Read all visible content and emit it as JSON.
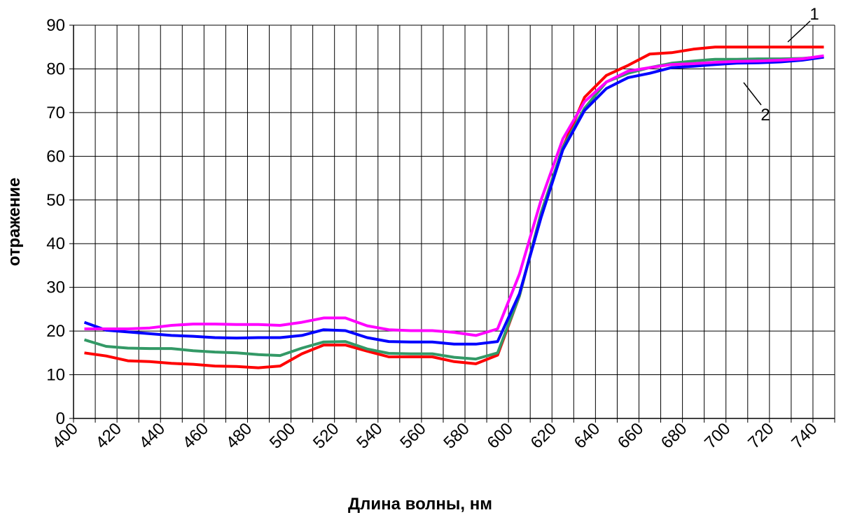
{
  "chart_data": {
    "type": "line",
    "x_label": "Длина волны, нм",
    "y_label": "отражение",
    "categories": [
      "400",
      null,
      "420",
      null,
      "440",
      null,
      "460",
      null,
      "480",
      null,
      "500",
      null,
      "520",
      null,
      "540",
      null,
      "560",
      null,
      "580",
      null,
      "600",
      null,
      "620",
      null,
      "640",
      null,
      "660",
      null,
      "680",
      null,
      "700",
      null,
      "720",
      null,
      "740"
    ],
    "series": [
      {
        "color": "#ff0000",
        "values": [
          15.0,
          14.3,
          13.2,
          13.0,
          12.6,
          12.4,
          12.0,
          11.9,
          11.6,
          12.0,
          14.8,
          16.8,
          16.8,
          15.4,
          14.1,
          14.1,
          14.1,
          13.0,
          12.5,
          14.5,
          28,
          47,
          62,
          73.5,
          78.5,
          80.8,
          83.4,
          83.7,
          84.5,
          85,
          85,
          85,
          85,
          85,
          85
        ]
      },
      {
        "color": "#339966",
        "values": [
          18.0,
          16.5,
          16.1,
          16.0,
          16.0,
          15.5,
          15.2,
          15.0,
          14.6,
          14.4,
          16.1,
          17.5,
          17.6,
          15.9,
          14.9,
          14.8,
          14.8,
          14.0,
          13.6,
          15.0,
          28,
          47,
          62,
          71,
          77,
          79,
          80.3,
          81.3,
          81.8,
          82.2,
          82.2,
          82.3,
          82.3,
          82.4,
          82.8
        ]
      },
      {
        "color": "#0000ff",
        "values": [
          22.0,
          20.2,
          19.8,
          19.4,
          19.0,
          18.8,
          18.5,
          18.4,
          18.5,
          18.5,
          19.0,
          20.3,
          20.1,
          18.5,
          17.6,
          17.5,
          17.5,
          17.0,
          17.0,
          17.6,
          28.5,
          46,
          61.5,
          70.5,
          75.5,
          78.0,
          79.0,
          80.3,
          80.6,
          81.0,
          81.3,
          81.4,
          81.6,
          82.0,
          82.7
        ]
      },
      {
        "color": "#ff00ff",
        "values": [
          20.5,
          20.5,
          20.5,
          20.7,
          21.3,
          21.6,
          21.6,
          21.5,
          21.5,
          21.3,
          22.0,
          23.0,
          23.0,
          21.2,
          20.3,
          20.1,
          20.1,
          19.7,
          19.0,
          20.5,
          33,
          50,
          64,
          72.5,
          77,
          79.5,
          80.3,
          81,
          81.2,
          81.5,
          81.7,
          81.8,
          82,
          82.3,
          83
        ]
      }
    ],
    "ylim": [
      0,
      90
    ],
    "yticks": [
      0,
      10,
      20,
      30,
      40,
      50,
      60,
      70,
      80,
      90
    ],
    "grid": true,
    "annotations": [
      "1",
      "2"
    ]
  }
}
